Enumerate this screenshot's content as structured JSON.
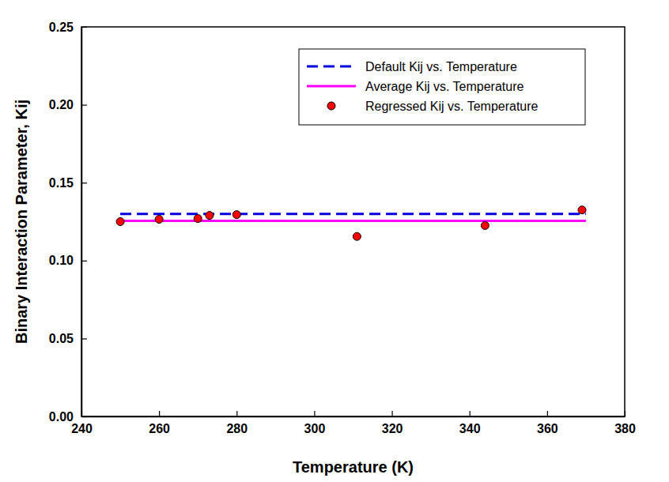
{
  "chart_data": {
    "type": "scatter",
    "x_label": "Temperature (K)",
    "y_label": "Binary Interaction Parameter, Kij",
    "xlim": [
      240,
      380
    ],
    "xticks": [
      240,
      260,
      280,
      300,
      320,
      340,
      360,
      380
    ],
    "ylim": [
      0,
      0.25
    ],
    "yticks": [
      {
        "value": 0,
        "label": "0.00"
      },
      {
        "value": 0.05,
        "label": "0.05"
      },
      {
        "value": 0.1,
        "label": "0.10"
      },
      {
        "value": 0.15,
        "label": "0.15"
      },
      {
        "value": 0.2,
        "label": "0.20"
      },
      {
        "value": 0.25,
        "label": "0.25"
      }
    ],
    "legend": "upper right",
    "series": [
      {
        "name": "Default Kij vs. Temperature",
        "type": "line",
        "line_style": "dashed",
        "color": "#0000e0",
        "x": [
          250,
          370
        ],
        "values": [
          0.13,
          0.13
        ]
      },
      {
        "name": "Average Kij vs. Temperature",
        "type": "line",
        "line_style": "solid",
        "color": "#ff00ff",
        "x": [
          250,
          370
        ],
        "values": [
          0.1255,
          0.1255
        ]
      },
      {
        "name": "Regressed Kij vs. Temperature",
        "type": "scatter",
        "marker": "circle",
        "color": "#ff0000",
        "x": [
          250,
          260,
          270,
          273,
          280,
          311,
          344,
          369
        ],
        "values": [
          0.125,
          0.1265,
          0.127,
          0.129,
          0.1295,
          0.1155,
          0.1225,
          0.1325
        ]
      }
    ]
  }
}
